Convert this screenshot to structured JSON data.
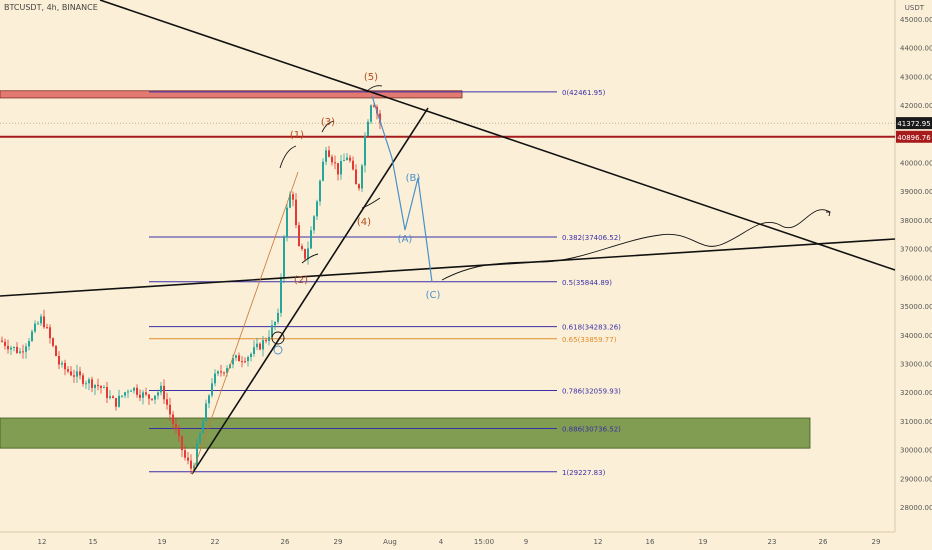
{
  "header": {
    "symbol": "BTCUSDT",
    "timeframe": "4h",
    "exchange": "BINANCE",
    "sep": ", "
  },
  "price_axis": {
    "currency": "USDT",
    "ticks": [
      "45000.00",
      "44000.00",
      "43000.00",
      "42000.00",
      "41000.00",
      "40000.00",
      "39000.00",
      "38000.00",
      "37000.00",
      "36000.00",
      "35000.00",
      "34000.00",
      "33000.00",
      "32000.00",
      "31000.00",
      "30000.00",
      "29000.00",
      "28000.00"
    ],
    "current_price": "41372.95",
    "level_price": "40896.76"
  },
  "time_axis": {
    "ticks": [
      "12",
      "15",
      "19",
      "22",
      "26",
      "29",
      "Aug",
      "4",
      "15:00",
      "9",
      "12",
      "16",
      "19",
      "23",
      "26",
      "29"
    ]
  },
  "colors": {
    "background": "#fbf0d7",
    "bull": "#26a69a",
    "bear": "#e53935",
    "fib_line": "#3b2fa8",
    "fib_065": "#e08b2c",
    "zone_green": "#6b8e3a",
    "zone_red": "#d9534f",
    "wave_orange": "#b5491f",
    "wave_blue": "#4a90c9",
    "level_red": "#a61c1c"
  },
  "chart_data": {
    "type": "candlestick",
    "y_axis": {
      "min": 27500,
      "max": 45500,
      "scale": "linear"
    },
    "fib_levels": [
      {
        "label": "0(42461.95)",
        "value": 42461.95
      },
      {
        "label": "0.382(37406.52)",
        "value": 37406.52
      },
      {
        "label": "0.5(35844.89)",
        "value": 35844.89
      },
      {
        "label": "0.618(34283.26)",
        "value": 34283.26
      },
      {
        "label": "0.65(33859.77)",
        "value": 33859.77
      },
      {
        "label": "0.786(32059.93)",
        "value": 32059.93
      },
      {
        "label": "0.886(30736.52)",
        "value": 30736.52
      },
      {
        "label": "1(29227.83)",
        "value": 29227.83
      }
    ],
    "zones": [
      {
        "type": "resistance",
        "from": 42250,
        "to": 42500
      },
      {
        "type": "support",
        "from": 30050,
        "to": 31100
      }
    ],
    "horizontal_levels": [
      40896.76
    ],
    "wave_labels": [
      "(1)",
      "(2)",
      "(3)",
      "(4)",
      "(5)",
      "(A)",
      "(B)",
      "(C)"
    ]
  }
}
